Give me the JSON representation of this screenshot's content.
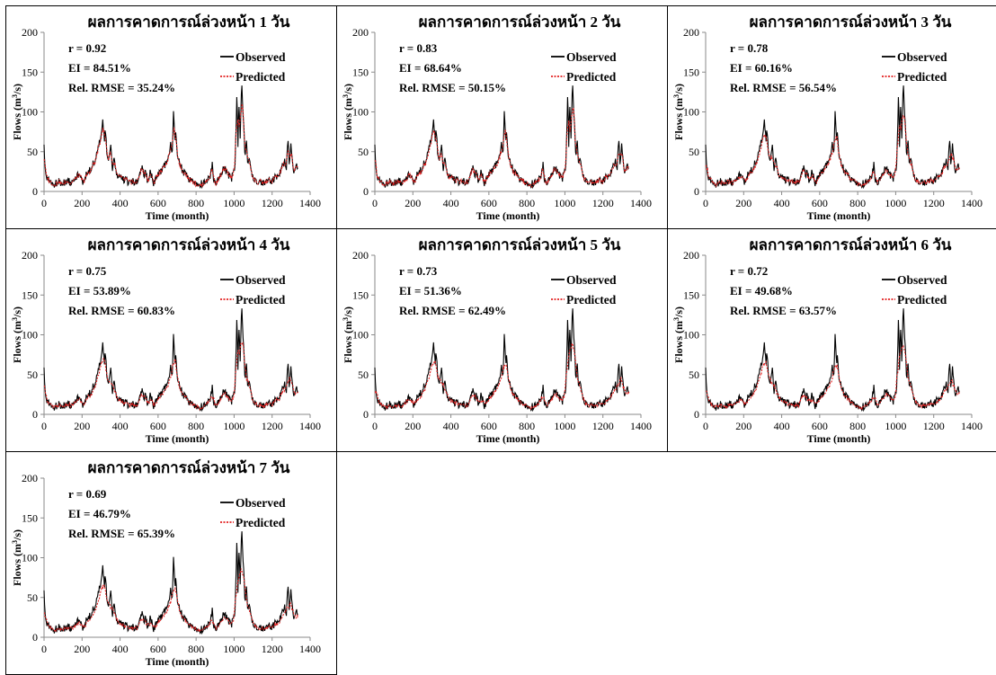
{
  "chart_data": [
    {
      "type": "line",
      "title": "ผลการคาดการณ์ล่วงหน้า 1 วัน",
      "xlabel": "Time (month)",
      "ylabel": "Flows (m",
      "ylabel_sup": "3",
      "ylabel_suffix": "/s)",
      "xlim": [
        0,
        1400
      ],
      "ylim": [
        0,
        200
      ],
      "xticks": [
        "0",
        "200",
        "400",
        "600",
        "800",
        "1000",
        "1200",
        "1400"
      ],
      "yticks": [
        "0",
        "50",
        "100",
        "150",
        "200"
      ],
      "stats": [
        "r = 0.92",
        "EI = 84.51%",
        "Rel. RMSE = 35.24%"
      ],
      "legend": [
        "Observed",
        "Predicted"
      ],
      "dampen": 0.92
    },
    {
      "type": "line",
      "title": "ผลการคาดการณ์ล่วงหน้า 2 วัน",
      "xlabel": "Time (month)",
      "ylabel": "Flows (m",
      "ylabel_sup": "3",
      "ylabel_suffix": "/s)",
      "xlim": [
        0,
        1400
      ],
      "ylim": [
        0,
        200
      ],
      "xticks": [
        "0",
        "200",
        "400",
        "600",
        "800",
        "1000",
        "1200",
        "1400"
      ],
      "yticks": [
        "0",
        "50",
        "100",
        "150",
        "200"
      ],
      "stats": [
        "r = 0.83",
        "EI = 68.64%",
        "Rel. RMSE = 50.15%"
      ],
      "legend": [
        "Observed",
        "Predicted"
      ],
      "dampen": 0.85
    },
    {
      "type": "line",
      "title": "ผลการคาดการณ์ล่วงหน้า 3 วัน",
      "xlabel": "Time (month)",
      "ylabel": "Flows (m",
      "ylabel_sup": "3",
      "ylabel_suffix": "/s)",
      "xlim": [
        0,
        1400
      ],
      "ylim": [
        0,
        200
      ],
      "xticks": [
        "0",
        "200",
        "400",
        "600",
        "800",
        "1000",
        "1200",
        "1400"
      ],
      "yticks": [
        "0",
        "50",
        "100",
        "150",
        "200"
      ],
      "stats": [
        "r = 0.78",
        "EI = 60.16%",
        "Rel. RMSE = 56.54%"
      ],
      "legend": [
        "Observed",
        "Predicted"
      ],
      "dampen": 0.78
    },
    {
      "type": "line",
      "title": "ผลการคาดการณ์ล่วงหน้า 4 วัน",
      "xlabel": "Time (month)",
      "ylabel": "Flows (m",
      "ylabel_sup": "3",
      "ylabel_suffix": "/s)",
      "xlim": [
        0,
        1400
      ],
      "ylim": [
        0,
        200
      ],
      "xticks": [
        "0",
        "200",
        "400",
        "600",
        "800",
        "1000",
        "1200",
        "1400"
      ],
      "yticks": [
        "0",
        "50",
        "100",
        "150",
        "200"
      ],
      "stats": [
        "r = 0.75",
        "EI = 53.89%",
        "Rel. RMSE = 60.83%"
      ],
      "legend": [
        "Observed",
        "Predicted"
      ],
      "dampen": 0.72
    },
    {
      "type": "line",
      "title": "ผลการคาดการณ์ล่วงหน้า 5 วัน",
      "xlabel": "Time (month)",
      "ylabel": "Flows (m",
      "ylabel_sup": "3",
      "ylabel_suffix": "/s)",
      "xlim": [
        0,
        1400
      ],
      "ylim": [
        0,
        200
      ],
      "xticks": [
        "0",
        "200",
        "400",
        "600",
        "800",
        "1000",
        "1200",
        "1400"
      ],
      "yticks": [
        "0",
        "50",
        "100",
        "150",
        "200"
      ],
      "stats": [
        "r = 0.73",
        "EI = 51.36%",
        "Rel. RMSE = 62.49%"
      ],
      "legend": [
        "Observed",
        "Predicted"
      ],
      "dampen": 0.68
    },
    {
      "type": "line",
      "title": "ผลการคาดการณ์ล่วงหน้า 6 วัน",
      "xlabel": "Time (month)",
      "ylabel": "Flows (m",
      "ylabel_sup": "3",
      "ylabel_suffix": "/s)",
      "xlim": [
        0,
        1400
      ],
      "ylim": [
        0,
        200
      ],
      "xticks": [
        "0",
        "200",
        "400",
        "600",
        "800",
        "1000",
        "1200",
        "1400"
      ],
      "yticks": [
        "0",
        "50",
        "100",
        "150",
        "200"
      ],
      "stats": [
        "r = 0.72",
        "EI = 49.68%",
        "Rel. RMSE = 63.57%"
      ],
      "legend": [
        "Observed",
        "Predicted"
      ],
      "dampen": 0.65
    },
    {
      "type": "line",
      "title": "ผลการคาดการณ์ล่วงหน้า 7 วัน",
      "xlabel": "Time (month)",
      "ylabel": "Flows (m",
      "ylabel_sup": "3",
      "ylabel_suffix": "/s)",
      "xlim": [
        0,
        1400
      ],
      "ylim": [
        0,
        200
      ],
      "xticks": [
        "0",
        "200",
        "400",
        "600",
        "800",
        "1000",
        "1200",
        "1400"
      ],
      "yticks": [
        "0",
        "50",
        "100",
        "150",
        "200"
      ],
      "stats": [
        "r = 0.69",
        "EI = 46.79%",
        "Rel. RMSE = 65.39%"
      ],
      "legend": [
        "Observed",
        "Predicted"
      ],
      "dampen": 0.6
    }
  ],
  "observed_key": {
    "x": [
      0,
      5,
      12,
      20,
      30,
      45,
      60,
      80,
      100,
      120,
      140,
      160,
      180,
      195,
      205,
      215,
      230,
      250,
      270,
      285,
      300,
      310,
      318,
      322,
      330,
      340,
      350,
      360,
      370,
      380,
      400,
      420,
      440,
      460,
      480,
      500,
      515,
      525,
      535,
      545,
      560,
      575,
      590,
      605,
      620,
      640,
      655,
      665,
      675,
      682,
      688,
      692,
      700,
      712,
      725,
      740,
      760,
      780,
      800,
      820,
      840,
      860,
      878,
      885,
      895,
      910,
      930,
      950,
      970,
      985,
      995,
      1005,
      1015,
      1020,
      1025,
      1032,
      1040,
      1046,
      1052,
      1058,
      1064,
      1072,
      1080,
      1095,
      1110,
      1130,
      1150,
      1170,
      1190,
      1210,
      1230,
      1250,
      1265,
      1275,
      1283,
      1290,
      1298,
      1305,
      1315,
      1325,
      1335
    ],
    "y": [
      62,
      28,
      18,
      12,
      15,
      8,
      10,
      12,
      10,
      14,
      12,
      18,
      20,
      16,
      12,
      18,
      22,
      30,
      40,
      55,
      70,
      88,
      60,
      82,
      50,
      42,
      60,
      28,
      40,
      22,
      18,
      15,
      12,
      14,
      10,
      16,
      30,
      20,
      28,
      12,
      24,
      10,
      18,
      22,
      26,
      34,
      42,
      60,
      50,
      106,
      60,
      78,
      46,
      36,
      28,
      22,
      16,
      14,
      10,
      8,
      12,
      14,
      22,
      34,
      10,
      14,
      24,
      30,
      20,
      16,
      22,
      35,
      125,
      60,
      110,
      70,
      135,
      100,
      80,
      40,
      65,
      28,
      42,
      20,
      16,
      12,
      10,
      14,
      12,
      16,
      20,
      28,
      40,
      30,
      70,
      32,
      60,
      40,
      20,
      35,
      28
    ]
  }
}
